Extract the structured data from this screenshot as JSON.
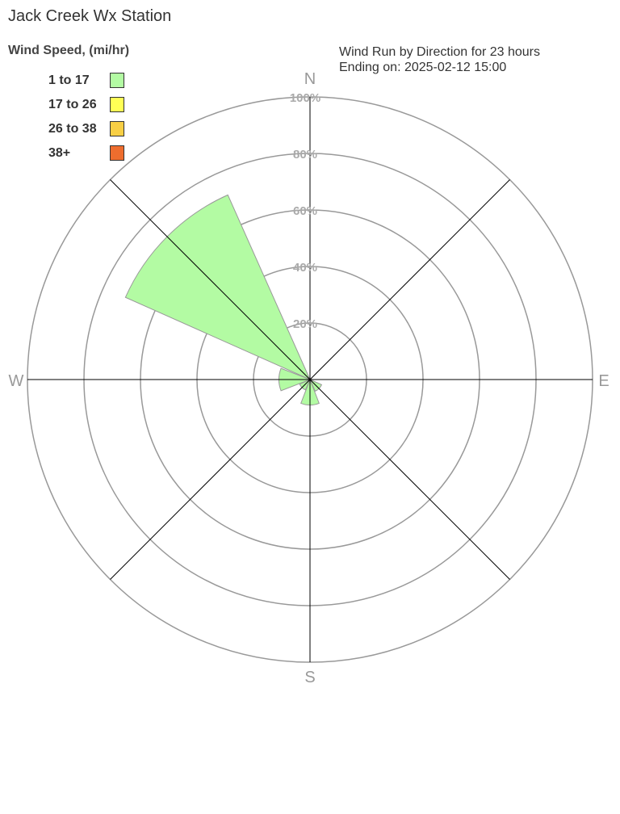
{
  "header": {
    "title": "Jack Creek Wx Station",
    "info_line1": "Wind Run by Direction for 23 hours",
    "info_line2": "Ending on: 2025-02-12 15:00"
  },
  "chart_data": {
    "type": "wind-rose",
    "legend_title": "Wind Speed, (mi/hr)",
    "legend": [
      {
        "label": "1 to 17",
        "color": "#b3fba3"
      },
      {
        "label": "17 to 26",
        "color": "#ffff55"
      },
      {
        "label": "26 to 38",
        "color": "#f8cf45"
      },
      {
        "label": "38+",
        "color": "#ee6d2e"
      }
    ],
    "ring_labels": [
      "20%",
      "40%",
      "60%",
      "80%",
      "100%"
    ],
    "radial_range": [
      0,
      100
    ],
    "compass_labels": {
      "N": "N",
      "E": "E",
      "S": "S",
      "W": "W"
    },
    "directions": [
      "N",
      "NE",
      "E",
      "SE",
      "S",
      "SW",
      "W",
      "NW"
    ],
    "series": [
      {
        "name": "1 to 17",
        "values": [
          0,
          0,
          0,
          4.5,
          9,
          4,
          11,
          71.5
        ]
      },
      {
        "name": "17 to 26",
        "values": [
          0,
          0,
          0,
          0,
          0,
          0,
          0,
          0
        ]
      },
      {
        "name": "26 to 38",
        "values": [
          0,
          0,
          0,
          0,
          0,
          0,
          0,
          0
        ]
      },
      {
        "name": "38+",
        "values": [
          0,
          0,
          0,
          0,
          0,
          0,
          0,
          0
        ]
      }
    ]
  }
}
